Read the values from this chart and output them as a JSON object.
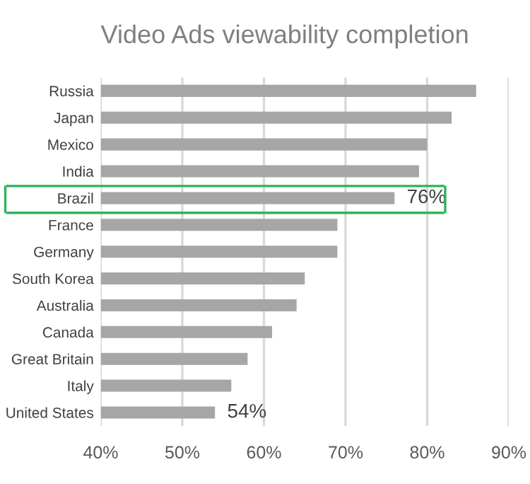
{
  "chart_data": {
    "type": "bar",
    "orientation": "horizontal",
    "title": "Video Ads viewability completion",
    "categories": [
      "Russia",
      "Japan",
      "Mexico",
      "India",
      "Brazil",
      "France",
      "Germany",
      "South Korea",
      "Australia",
      "Canada",
      "Great Britain",
      "Italy",
      "United States"
    ],
    "values": [
      86,
      83,
      80,
      79,
      76,
      69,
      69,
      65,
      64,
      61,
      58,
      56,
      54
    ],
    "value_labels": [
      null,
      null,
      null,
      null,
      "76%",
      null,
      null,
      null,
      null,
      null,
      null,
      null,
      "54%"
    ],
    "color": "#a6a6a6",
    "xlim": [
      40,
      90
    ],
    "xticks": [
      {
        "value": 40,
        "label": "40%"
      },
      {
        "value": 50,
        "label": "50%"
      },
      {
        "value": 60,
        "label": "60%"
      },
      {
        "value": 70,
        "label": "70%"
      },
      {
        "value": 80,
        "label": "80%"
      },
      {
        "value": 90,
        "label": "90%"
      }
    ],
    "grid": "x"
  }
}
